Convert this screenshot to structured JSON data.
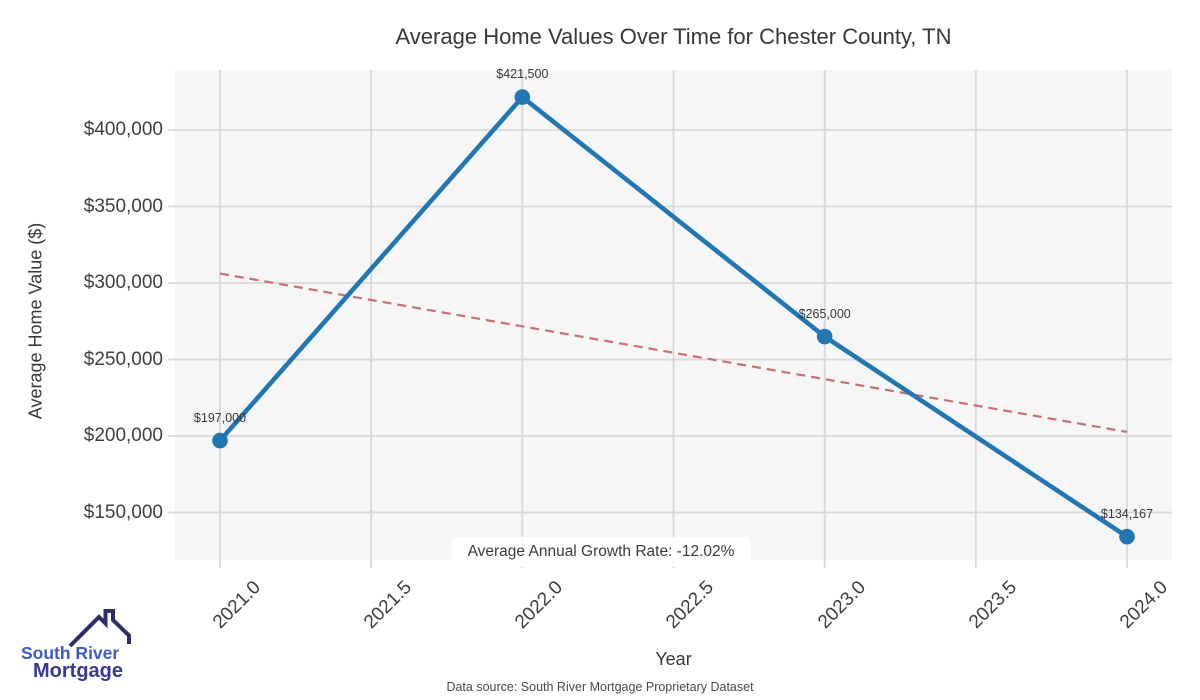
{
  "title": "Average Home Values Over Time for Chester County, TN",
  "footer": "Data source: South River Mortgage Proprietary Dataset",
  "logo": {
    "line1": "South River",
    "line2": "Mortgage",
    "roof_color": "#2e2d69",
    "line1_color": "#3d5cc5",
    "line2_color": "#363a90"
  },
  "chart_data": {
    "type": "line",
    "title": "Average Home Values Over Time for Chester County, TN",
    "xlabel": "Year",
    "ylabel": "Average Home Value ($)",
    "annotation": "Average Annual Growth Rate: -12.02%",
    "x": [
      2021,
      2022,
      2023,
      2024
    ],
    "values": [
      197000,
      421500,
      265000,
      134167
    ],
    "point_labels": [
      "$197,000",
      "$421,500",
      "$265,000",
      "$134,167"
    ],
    "trend": {
      "type": "linear",
      "x": [
        2021,
        2024
      ],
      "y": [
        306167,
        202667
      ],
      "style": "dashed"
    },
    "x_ticks": {
      "values": [
        2021,
        2021.5,
        2022,
        2022.5,
        2023,
        2023.5,
        2024
      ],
      "labels": [
        "2021.0",
        "2021.5",
        "2022.0",
        "2022.5",
        "2023.0",
        "2023.5",
        "2024.0"
      ]
    },
    "y_ticks": {
      "values": [
        150000,
        200000,
        250000,
        300000,
        350000,
        400000
      ],
      "labels": [
        "$150,000",
        "$200,000",
        "$250,000",
        "$300,000",
        "$350,000",
        "$400,000"
      ]
    },
    "xlim": [
      2020.85,
      2024.15
    ],
    "ylim": [
      118950,
      439200
    ],
    "grid": true,
    "legend": "none",
    "colors": {
      "line": "#1f77b4",
      "marker": "#1f77b4",
      "trend": "#c96f74",
      "grid": "#d8d8d8",
      "plot_background": "#f6f6f7"
    }
  }
}
